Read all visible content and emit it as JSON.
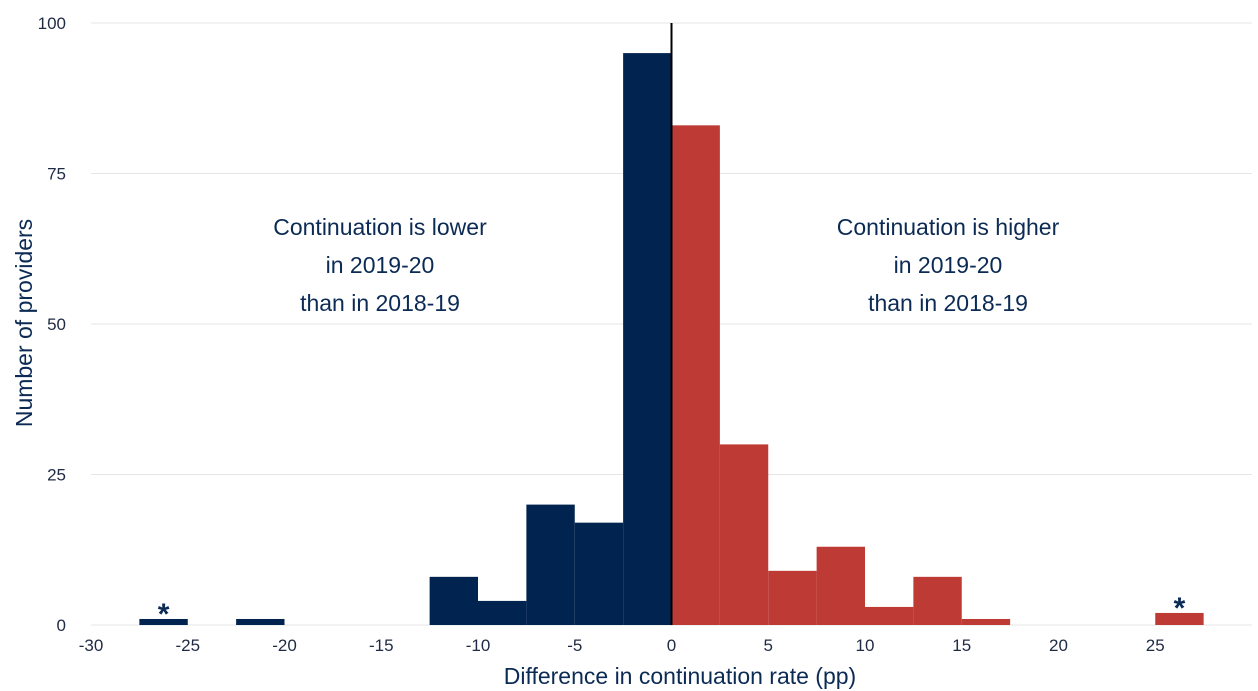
{
  "chart_data": {
    "type": "bar",
    "xlabel": "Difference in continuation rate (pp)",
    "ylabel": "Number of providers",
    "xlim": [
      -30,
      30
    ],
    "ylim": [
      0,
      100
    ],
    "x_ticks": [
      -30,
      -25,
      -20,
      -15,
      -10,
      -5,
      0,
      5,
      10,
      15,
      20,
      25
    ],
    "y_ticks": [
      0,
      25,
      50,
      75,
      100
    ],
    "bin_width": 2.5,
    "grid": "horizontal",
    "reference_line_x": 0,
    "colors": {
      "negative": "#00234f",
      "positive": "#be3a34",
      "reference": "#000000"
    },
    "bins": [
      {
        "start": -27.5,
        "end": -25,
        "value": 1
      },
      {
        "start": -22.5,
        "end": -20,
        "value": 1
      },
      {
        "start": -12.5,
        "end": -10,
        "value": 8
      },
      {
        "start": -10,
        "end": -7.5,
        "value": 4
      },
      {
        "start": -7.5,
        "end": -5,
        "value": 20
      },
      {
        "start": -5,
        "end": -2.5,
        "value": 17
      },
      {
        "start": -2.5,
        "end": 0,
        "value": 95
      },
      {
        "start": 0,
        "end": 2.5,
        "value": 83
      },
      {
        "start": 2.5,
        "end": 5,
        "value": 30
      },
      {
        "start": 5,
        "end": 7.5,
        "value": 9
      },
      {
        "start": 7.5,
        "end": 10,
        "value": 13
      },
      {
        "start": 10,
        "end": 12.5,
        "value": 3
      },
      {
        "start": 12.5,
        "end": 15,
        "value": 8
      },
      {
        "start": 15,
        "end": 17.5,
        "value": 1
      },
      {
        "start": 25,
        "end": 27.5,
        "value": 2
      }
    ],
    "annotations": [
      {
        "name": "annotation-lower",
        "lines": [
          "Continuation is lower",
          "in 2019-20",
          "than in 2018-19"
        ]
      },
      {
        "name": "annotation-higher",
        "lines": [
          "Continuation is higher",
          "in 2019-20",
          "than in 2018-19"
        ]
      }
    ],
    "markers": [
      {
        "label": "*",
        "x": -26.25,
        "y": 1
      },
      {
        "label": "*",
        "x": 26.25,
        "y": 2
      }
    ]
  }
}
